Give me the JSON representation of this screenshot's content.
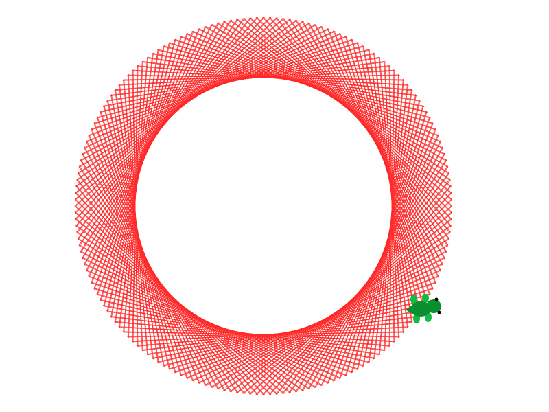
{
  "canvas": {
    "background_color": "#ffffff"
  },
  "pattern": {
    "kind": "string-art-ring",
    "stroke_color": "#ff2a2a",
    "strands": 180
  },
  "turtle": {
    "icon": "turtle-icon",
    "body_color": "#0a8f2f",
    "limb_color": "#11bb44",
    "eye_color": "#000000",
    "heading": "right"
  }
}
